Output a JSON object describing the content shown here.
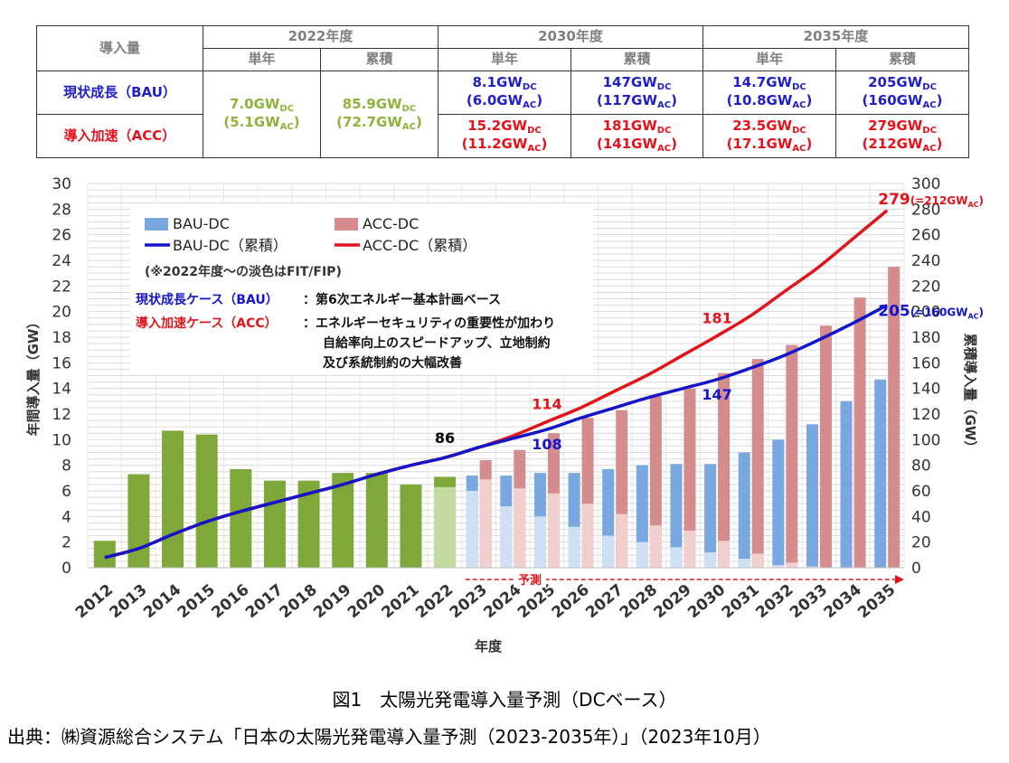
{
  "table": {
    "corner": "導入量",
    "periods": [
      "2022年度",
      "2030年度",
      "2035年度"
    ],
    "sub": [
      "単年",
      "累積",
      "単年",
      "累積",
      "単年",
      "累積"
    ],
    "rows": [
      {
        "label": "現状成長（BAU）",
        "color": "#1f1fc8"
      },
      {
        "label": "導入加速（ACC）",
        "color": "#e8111a"
      }
    ],
    "y2022": {
      "single_dc": "7.0GW",
      "single_ac": "(5.1GW",
      "cum_dc": "85.9GW",
      "cum_ac": "(72.7GW"
    },
    "bau": [
      {
        "dc": "8.1GW",
        "ac": "(6.0GW"
      },
      {
        "dc": "147GW",
        "ac": "(117GW"
      },
      {
        "dc": "14.7GW",
        "ac": "(10.8GW"
      },
      {
        "dc": "205GW",
        "ac": "(160GW"
      }
    ],
    "acc": [
      {
        "dc": "15.2GW",
        "ac": "(11.2GW"
      },
      {
        "dc": "181GW",
        "ac": "(141GW"
      },
      {
        "dc": "23.5GW",
        "ac": "(17.1GW"
      },
      {
        "dc": "279GW",
        "ac": "(212GW"
      }
    ],
    "dc_sub": "DC",
    "ac_sub": "AC",
    "close": ")"
  },
  "chart_data": {
    "type": "bar",
    "categories": [
      "2012",
      "2013",
      "2014",
      "2015",
      "2016",
      "2017",
      "2018",
      "2019",
      "2020",
      "2021",
      "2022",
      "2023",
      "2024",
      "2025",
      "2026",
      "2027",
      "2028",
      "2029",
      "2030",
      "2031",
      "2032",
      "2033",
      "2034",
      "2035"
    ],
    "historical": [
      2.1,
      7.3,
      10.7,
      10.4,
      7.7,
      6.8,
      6.8,
      7.4,
      7.4,
      6.5,
      7.1,
      null,
      null,
      null,
      null,
      null,
      null,
      null,
      null,
      null,
      null,
      null,
      null,
      null
    ],
    "historical_fit": [
      null,
      null,
      null,
      null,
      null,
      null,
      null,
      null,
      null,
      null,
      6.3,
      null,
      null,
      null,
      null,
      null,
      null,
      null,
      null,
      null,
      null,
      null,
      null,
      null
    ],
    "series": [
      {
        "name": "BAU-DC",
        "values": [
          null,
          null,
          null,
          null,
          null,
          null,
          null,
          null,
          null,
          null,
          null,
          7.2,
          7.2,
          7.4,
          7.4,
          7.7,
          8.0,
          8.1,
          8.1,
          9.0,
          10.0,
          11.2,
          13.0,
          14.7
        ],
        "fit_part": [
          null,
          null,
          null,
          null,
          null,
          null,
          null,
          null,
          null,
          null,
          null,
          6.0,
          4.8,
          4.0,
          3.2,
          2.5,
          2.0,
          1.6,
          1.2,
          0.7,
          0.2,
          0.1,
          0,
          0
        ]
      },
      {
        "name": "ACC-DC",
        "values": [
          null,
          null,
          null,
          null,
          null,
          null,
          null,
          null,
          null,
          null,
          null,
          8.4,
          9.2,
          10.5,
          11.7,
          12.3,
          13.4,
          14.0,
          15.2,
          16.3,
          17.4,
          18.9,
          21.1,
          23.5
        ],
        "fit_part": [
          null,
          null,
          null,
          null,
          null,
          null,
          null,
          null,
          null,
          null,
          null,
          6.9,
          6.2,
          5.8,
          5.0,
          4.2,
          3.3,
          2.9,
          2.1,
          1.1,
          0.4,
          0,
          0,
          0
        ]
      },
      {
        "name": "BAU-DC（累積）",
        "values": [
          8,
          15,
          26,
          36,
          44,
          51,
          58,
          65,
          73,
          80,
          86,
          94,
          101,
          108,
          117,
          125,
          133,
          140,
          147,
          156,
          166,
          178,
          191,
          205
        ]
      },
      {
        "name": "ACC-DC（累積）",
        "values": [
          8,
          15,
          26,
          36,
          44,
          51,
          58,
          65,
          73,
          80,
          86,
          94,
          103,
          114,
          125,
          138,
          151,
          166,
          181,
          197,
          216,
          235,
          257,
          279
        ]
      }
    ],
    "ylim_left": [
      0,
      30
    ],
    "ylim_right": [
      0,
      300
    ],
    "yticks_left": [
      0,
      2,
      4,
      6,
      8,
      10,
      12,
      14,
      16,
      18,
      20,
      22,
      24,
      26,
      28,
      30
    ],
    "yticks_right": [
      0,
      20,
      40,
      60,
      80,
      100,
      120,
      140,
      160,
      180,
      200,
      220,
      240,
      260,
      280,
      300
    ],
    "xlabel": "年度",
    "ylabel_left": "年間導入量（GW）",
    "ylabel_right": "累積導入量（GW）",
    "colors": {
      "historical": "#7ea83a",
      "historical_fit": "#c3dba0",
      "bau": "#79a7e0",
      "bau_fit": "#cfe0f4",
      "acc": "#d48c8c",
      "acc_fit": "#f1cfcf",
      "bau_line": "#1414c8",
      "acc_line": "#e0141a"
    },
    "legend": [
      "BAU-DC",
      "ACC-DC",
      "BAU-DC（累積）",
      "ACC-DC（累積）"
    ],
    "note": "(※2022年度～の淡色はFIT/FIP)",
    "case_bau_label": "現状成長ケース（BAU）",
    "case_bau_text": "：第6次エネルギー基本計画ベース",
    "case_acc_label": "導入加速ケース（ACC）",
    "case_acc_text": "：エネルギーセキュリティの重要性が加わり",
    "case_acc_text2": "自給率向上のスピードアップ、立地制約",
    "case_acc_text3": "及び系統制約の大幅改善",
    "forecast_label": "予測",
    "annotations": [
      {
        "text": "86",
        "color": "#000000",
        "x": "2022",
        "y": 86
      },
      {
        "text": "108",
        "color": "#1414c8",
        "x": "2025",
        "y": 108
      },
      {
        "text": "114",
        "color": "#e0141a",
        "x": "2025",
        "y": 114
      },
      {
        "text": "147",
        "color": "#1414c8",
        "x": "2030",
        "y": 147
      },
      {
        "text": "181",
        "color": "#e0141a",
        "x": "2030",
        "y": 181
      },
      {
        "text": "205(=160GW",
        "sub": "AC",
        "tail": ")",
        "color": "#1414c8",
        "x": "2035",
        "y": 205
      },
      {
        "text": "279(=212GW",
        "sub": "AC",
        "tail": ")",
        "color": "#e0141a",
        "x": "2035",
        "y": 279
      }
    ]
  },
  "caption": "図1　太陽光発電導入量予測（DCベース）",
  "source": "出典：㈱資源総合システム「日本の太陽光発電導入量予測（2023-2035年）」（2023年10月）"
}
